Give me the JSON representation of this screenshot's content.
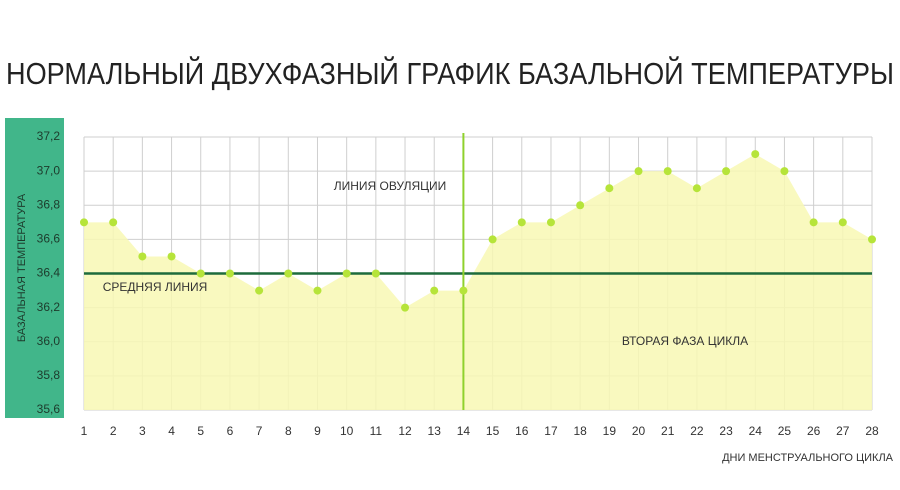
{
  "chart_data": {
    "type": "area",
    "title": "НОРМАЛЬНЫЙ ДВУХФАЗНЫЙ ГРАФИК БАЗАЛЬНОЙ ТЕМПЕРАТУРЫ",
    "y_label": "БАЗАЛЬНАЯ ТЕМПЕРАТУРА",
    "x_label": "ДНИ МЕНСТРУАЛЬНОГО ЦИКЛА",
    "x": [
      1,
      2,
      3,
      4,
      5,
      6,
      7,
      8,
      9,
      10,
      11,
      12,
      13,
      14,
      15,
      16,
      17,
      18,
      19,
      20,
      21,
      22,
      23,
      24,
      25,
      26,
      27,
      28
    ],
    "values": [
      36.7,
      36.7,
      36.5,
      36.5,
      36.4,
      36.4,
      36.3,
      36.4,
      36.3,
      36.4,
      36.4,
      36.2,
      36.3,
      36.3,
      36.6,
      36.7,
      36.7,
      36.8,
      36.9,
      37.0,
      37.0,
      36.9,
      37.0,
      37.1,
      37.0,
      36.7,
      36.7,
      36.6
    ],
    "color": "#b6e43a",
    "area_color": "#f8f8b4",
    "xlim": [
      1,
      28
    ],
    "xticks": [
      1,
      2,
      3,
      4,
      5,
      6,
      7,
      8,
      9,
      10,
      11,
      12,
      13,
      14,
      15,
      16,
      17,
      18,
      19,
      20,
      21,
      22,
      23,
      24,
      25,
      26,
      27,
      28
    ],
    "ylim": [
      35.6,
      37.2
    ],
    "yticks": [
      {
        "value": 35.6,
        "label": "35,6"
      },
      {
        "value": 35.8,
        "label": "35,8"
      },
      {
        "value": 36.0,
        "label": "36,0"
      },
      {
        "value": 36.2,
        "label": "36,2"
      },
      {
        "value": 36.4,
        "label": "36,4"
      },
      {
        "value": 36.6,
        "label": "36,6"
      },
      {
        "value": 36.8,
        "label": "36,8"
      },
      {
        "value": 37.0,
        "label": "37,0"
      },
      {
        "value": 37.2,
        "label": "37,2"
      }
    ],
    "grid": true,
    "mean_line": {
      "value": 36.4,
      "label": "СРЕДНЯЯ ЛИНИЯ",
      "color": "#1d6b3c"
    },
    "ovulation_line": {
      "x": 14,
      "label": "ЛИНИЯ ОВУЛЯЦИИ",
      "color": "#8fd12c"
    },
    "phase_label": "ВТОРАЯ ФАЗА ЦИКЛА"
  }
}
